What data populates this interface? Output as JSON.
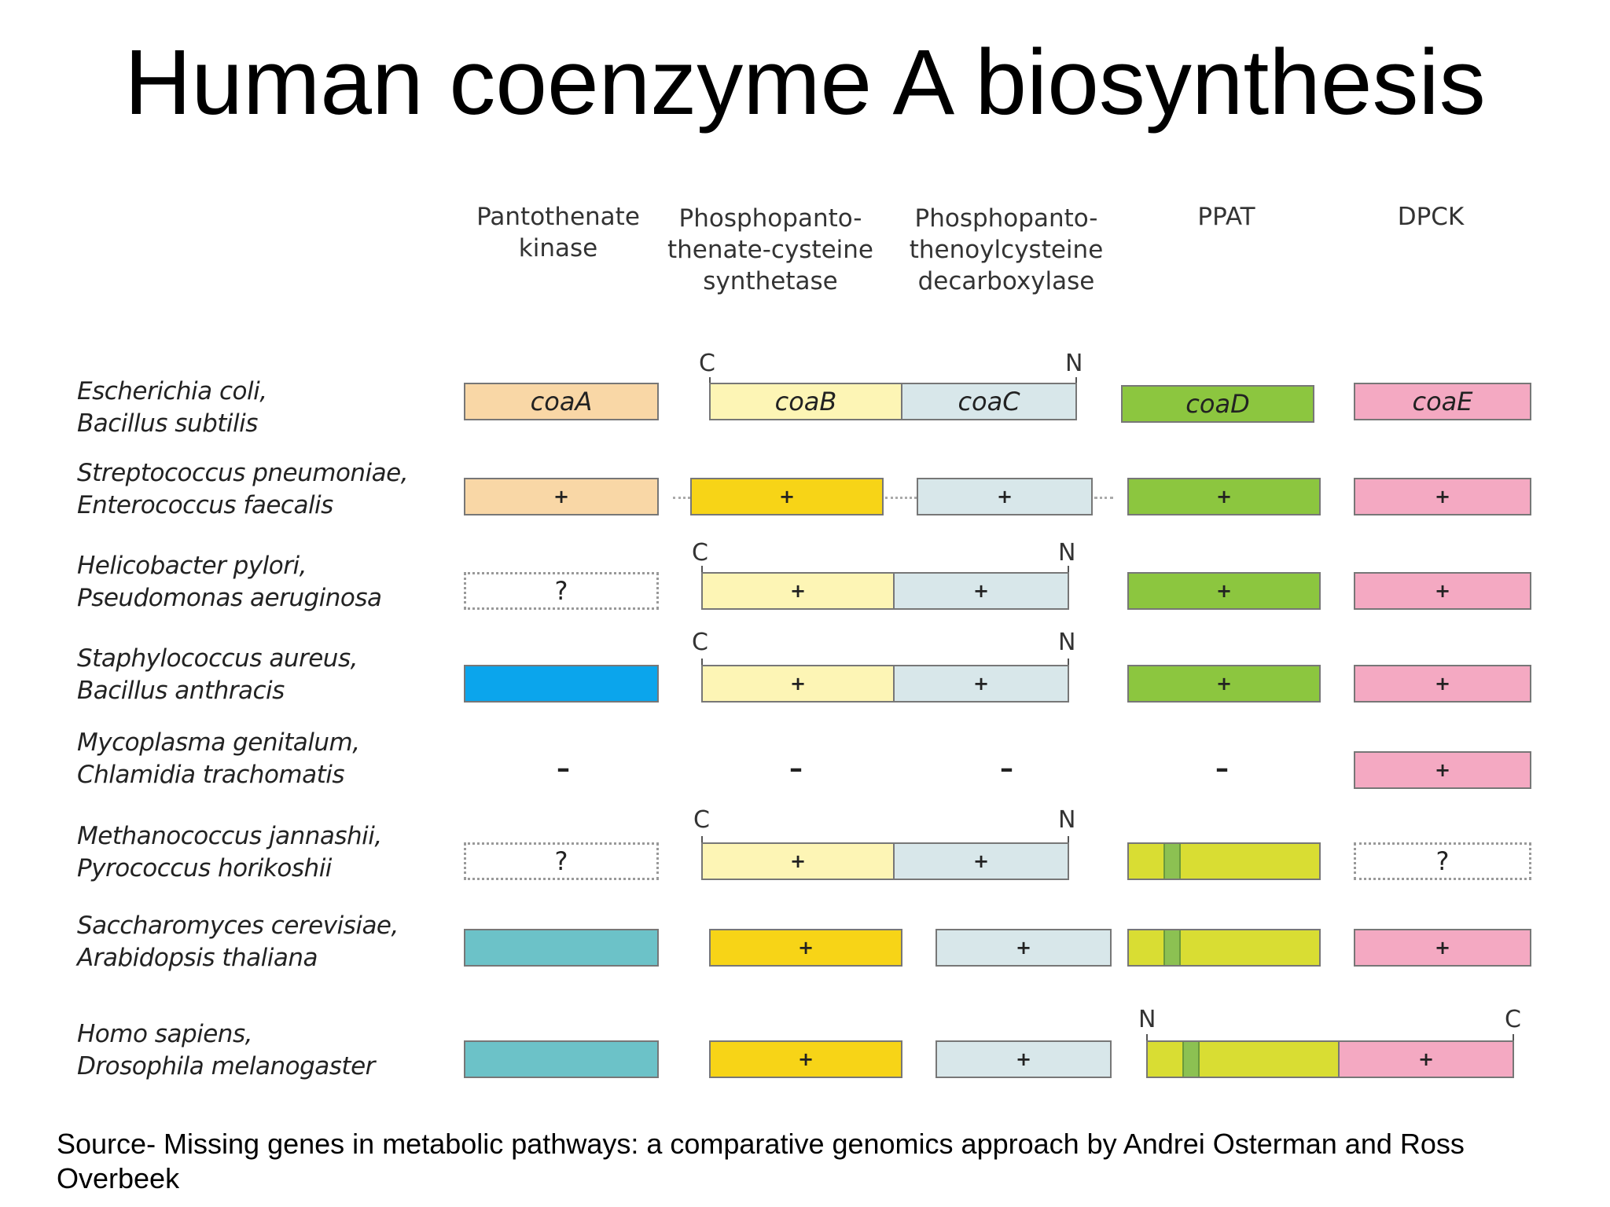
{
  "title": "Human coenzyme A biosynthesis",
  "columns": {
    "pantothenate_kinase": "Pantothenate\nkinase",
    "ppcs": "Phosphopanto-\nthenate-cysteine\nsynthetase",
    "ppcdc": "Phosphopanto-\nthenoylcysteine\ndecarboxylase",
    "ppat": "PPAT",
    "dpck": "DPCK"
  },
  "organisms": [
    "Escherichia coli,\nBacillus subtilis",
    "Streptococcus pneumoniae,\nEnterococcus faecalis",
    "Helicobacter pylori,\nPseudomonas aeruginosa",
    "Staphylococcus aureus,\nBacillus anthracis",
    "Mycoplasma genitalum,\nChlamidia trachomatis",
    "Methanococcus jannashii,\nPyrococcus horikoshii",
    "Saccharomyces cerevisiae,\nArabidopsis thaliana",
    "Homo sapiens,\nDrosophila melanogaster"
  ],
  "genes": {
    "coaA": "coaA",
    "coaB": "coaB",
    "coaC": "coaC",
    "coaD": "coaD",
    "coaE": "coaE"
  },
  "symbols": {
    "present": "+",
    "unknown": "?",
    "absent": "–"
  },
  "terminals": {
    "c": "C",
    "n": "N"
  },
  "colors": {
    "coaA": "#f9d7a6",
    "coaB_pale": "#fdf5b5",
    "coaB_gold": "#f7d417",
    "coaC": "#d8e7ea",
    "coaD": "#8cc63f",
    "coaE": "#f4a9c2",
    "kinase_blue": "#0ba5ec",
    "kinase_teal": "#6cc2c8",
    "ppat_yellow": "#d9dd33"
  },
  "source": "Source-  Missing genes in metabolic pathways: a comparative genomics approach by Andrei Osterman and Ross Overbeek"
}
